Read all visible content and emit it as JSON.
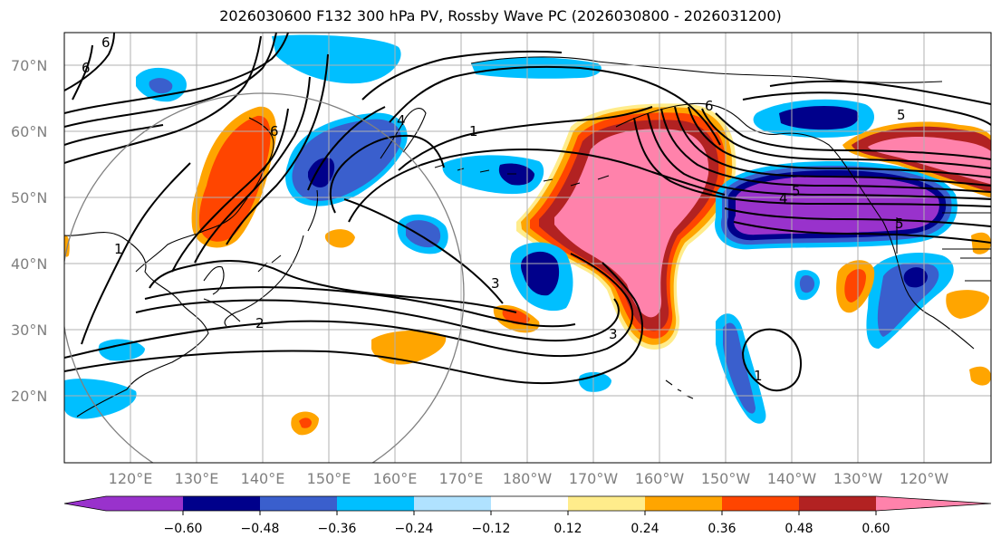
{
  "title": "2026030600 F132 300 hPa PV, Rossby Wave PC (2026030800 - 2026031200)",
  "lat_labels": [
    "70°N",
    "60°N",
    "50°N",
    "40°N",
    "30°N",
    "20°N"
  ],
  "lon_labels": [
    "120°E",
    "130°E",
    "140°E",
    "150°E",
    "160°E",
    "170°E",
    "180°W",
    "170°W",
    "160°W",
    "150°W",
    "140°W",
    "130°W",
    "120°W"
  ],
  "colorbar": {
    "colors": [
      "#9932CC",
      "#00008B",
      "#3A5FCD",
      "#00BFFF",
      "#B0E2FF",
      "#FFFFFF",
      "#FFEC8B",
      "#FFA500",
      "#FF4500",
      "#B22222",
      "#FF82AB"
    ],
    "tick_labels": [
      "−0.60",
      "−0.48",
      "−0.36",
      "−0.24",
      "−0.12",
      "0.12",
      "0.24",
      "0.36",
      "0.48",
      "0.60"
    ]
  },
  "contour_labels": [
    "6",
    "6",
    "6",
    "4",
    "1",
    "1",
    "2",
    "3",
    "3",
    "1",
    "4",
    "5",
    "5",
    "6",
    "5"
  ],
  "palette": {
    "purple": "#9932CC",
    "navy": "#00008B",
    "royal": "#3A5FCD",
    "sky": "#00BFFF",
    "lightsky": "#B0E2FF",
    "gold": "#FFEC8B",
    "orange": "#FFA500",
    "orangered": "#FF4500",
    "firebrick": "#B22222",
    "pink": "#FF82AB"
  }
}
